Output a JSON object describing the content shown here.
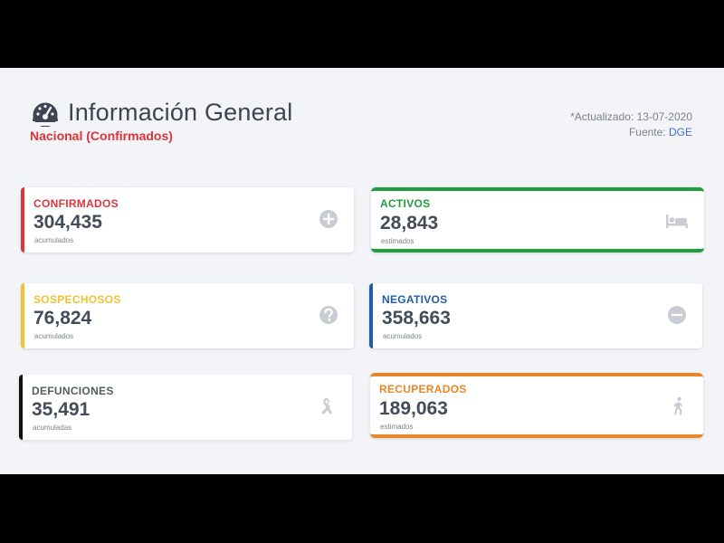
{
  "header": {
    "title": "Información General",
    "subtitle": "Nacional (Confirmados)"
  },
  "meta": {
    "updated": "*Actualizado: 13-07-2020",
    "source_label": "Fuente:",
    "source_value": "DGE"
  },
  "cards": {
    "confirmados": {
      "label": "CONFIRMADOS",
      "value": "304,435",
      "note": "acumulados",
      "color": "#d9363e",
      "icon": "plus-circle-icon"
    },
    "activos": {
      "label": "ACTIVOS",
      "value": "28,843",
      "note": "estimados",
      "color": "#1f9d3f",
      "icon": "bed-icon"
    },
    "sospechosos": {
      "label": "SOSPECHOSOS",
      "value": "76,824",
      "note": "acumulados",
      "color": "#f1c232",
      "icon": "question-circle-icon"
    },
    "negativos": {
      "label": "NEGATIVOS",
      "value": "358,663",
      "note": "acumulados",
      "color": "#1f5fa8",
      "icon": "minus-circle-icon"
    },
    "defunciones": {
      "label": "DEFUNCIONES",
      "value": "35,491",
      "note": "acumuladas",
      "color": "#111111",
      "icon": "ribbon-icon"
    },
    "recuperados": {
      "label": "RECUPERADOS",
      "value": "189,063",
      "note": "estimados",
      "color": "#e8862a",
      "icon": "walking-person-icon"
    }
  }
}
